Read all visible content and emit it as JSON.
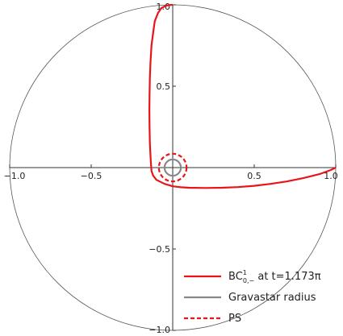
{
  "chart_data": {
    "type": "line",
    "plot_range": [
      -1.0,
      1.0
    ],
    "x_ticks": [
      -1.0,
      -0.5,
      0.5,
      1.0
    ],
    "y_ticks": [
      -1.0,
      -0.5,
      0.5,
      1.0
    ],
    "x_tick_labels": [
      "−1.0",
      "−0.5",
      "0.5",
      "1.0"
    ],
    "y_tick_labels": [
      "−1.0",
      "−0.5",
      "0.5",
      "1.0"
    ],
    "unit_circle_radius": 1.0,
    "gravastar_radius": 0.05,
    "ps_radius": 0.085,
    "colors": {
      "trajectory": "#e8141a",
      "gravastar": "#888888",
      "ps": "#e8141a",
      "circle": "#555555",
      "axes": "#333333"
    },
    "trajectory": {
      "x": [
        1.0,
        0.97,
        0.9,
        0.8,
        0.7,
        0.6,
        0.5,
        0.4,
        0.3,
        0.2,
        0.1,
        0.05,
        0.0,
        -0.05,
        -0.1,
        -0.12,
        -0.13,
        -0.135,
        -0.14,
        -0.142,
        -0.143,
        -0.142,
        -0.14,
        -0.136,
        -0.13,
        -0.12,
        -0.11,
        -0.09,
        -0.07,
        -0.04,
        -0.02,
        0.0
      ],
      "y": [
        0.0,
        -0.015,
        -0.04,
        -0.065,
        -0.085,
        -0.1,
        -0.112,
        -0.12,
        -0.124,
        -0.125,
        -0.124,
        -0.121,
        -0.115,
        -0.1,
        -0.075,
        -0.05,
        -0.02,
        0.05,
        0.15,
        0.25,
        0.35,
        0.45,
        0.55,
        0.65,
        0.75,
        0.83,
        0.9,
        0.95,
        0.98,
        0.995,
        0.999,
        1.0
      ]
    },
    "legend": [
      {
        "id": "bc",
        "label_main": "BC",
        "label_sup": "1",
        "label_sub": "0,−",
        "label_rest": " at t=1.173π",
        "style": "solid",
        "color": "#e8141a"
      },
      {
        "id": "grav",
        "label": "Gravastar radius",
        "style": "solid",
        "color": "#888888"
      },
      {
        "id": "ps",
        "label": "PS",
        "style": "dashed",
        "color": "#e8141a"
      }
    ]
  }
}
